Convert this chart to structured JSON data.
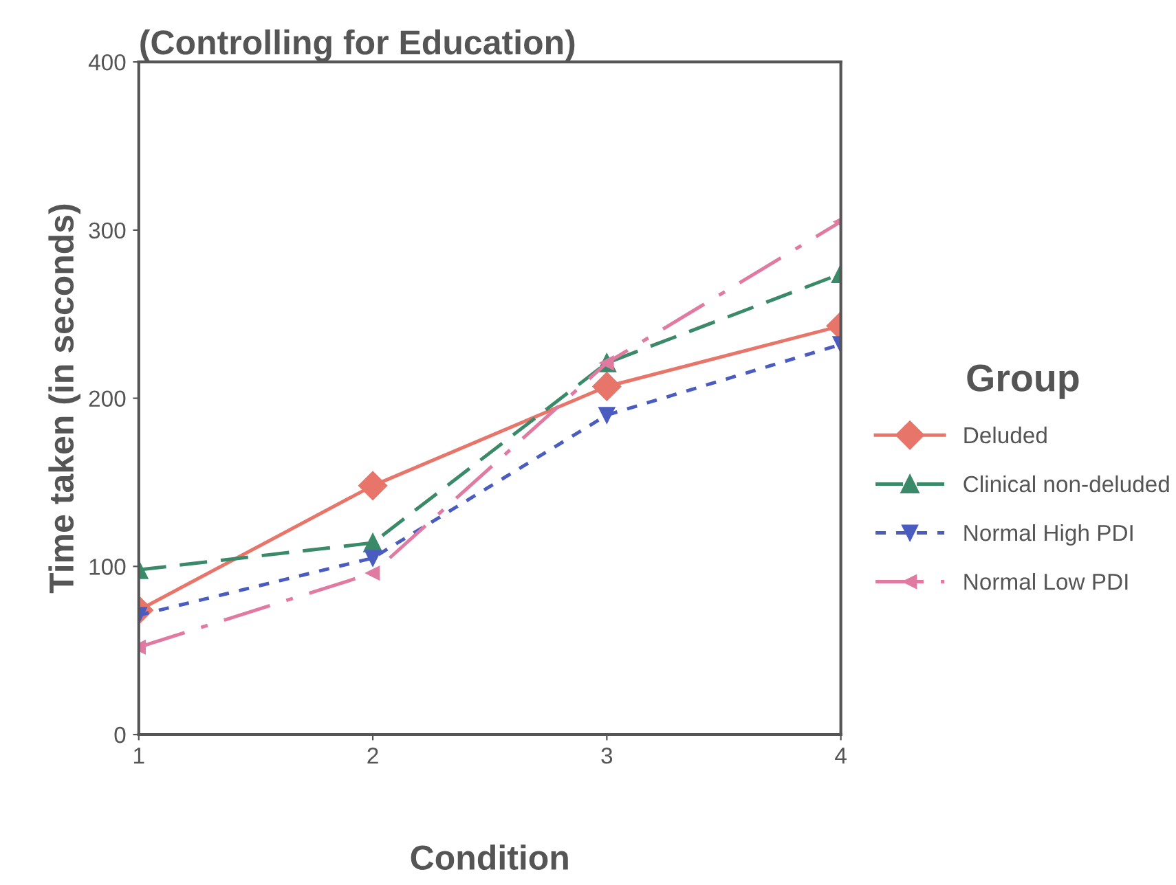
{
  "chart_data": {
    "type": "line",
    "title": "(Controlling for Education)",
    "xlabel": "Condition",
    "ylabel": "Time taken (in seconds)",
    "legend_title": "Group",
    "x": [
      1,
      2,
      3,
      4
    ],
    "xlim": [
      1,
      4
    ],
    "xticks": [
      1,
      2,
      3,
      4
    ],
    "ylim": [
      0,
      400
    ],
    "yticks": [
      0,
      100,
      200,
      300,
      400
    ],
    "grid": false,
    "legend": "right",
    "series": [
      {
        "name": "Deluded",
        "color": "#e8756a",
        "values": [
          74,
          148,
          207,
          243
        ],
        "marker": "diamond",
        "line_style": "solid"
      },
      {
        "name": "Clinical non-deluded",
        "color": "#3a8a6a",
        "values": [
          98,
          114,
          221,
          274
        ],
        "marker": "triangle",
        "line_style": "dashed"
      },
      {
        "name": "Normal High PDI",
        "color": "#4a5cc0",
        "values": [
          71,
          105,
          190,
          232
        ],
        "marker": "triangle_down",
        "line_style": "dotted"
      },
      {
        "name": "Normal Low PDI",
        "color": "#e07aa0",
        "values": [
          52,
          96,
          221,
          305
        ],
        "marker": "triangle_left",
        "line_style": "dashdot"
      }
    ]
  }
}
